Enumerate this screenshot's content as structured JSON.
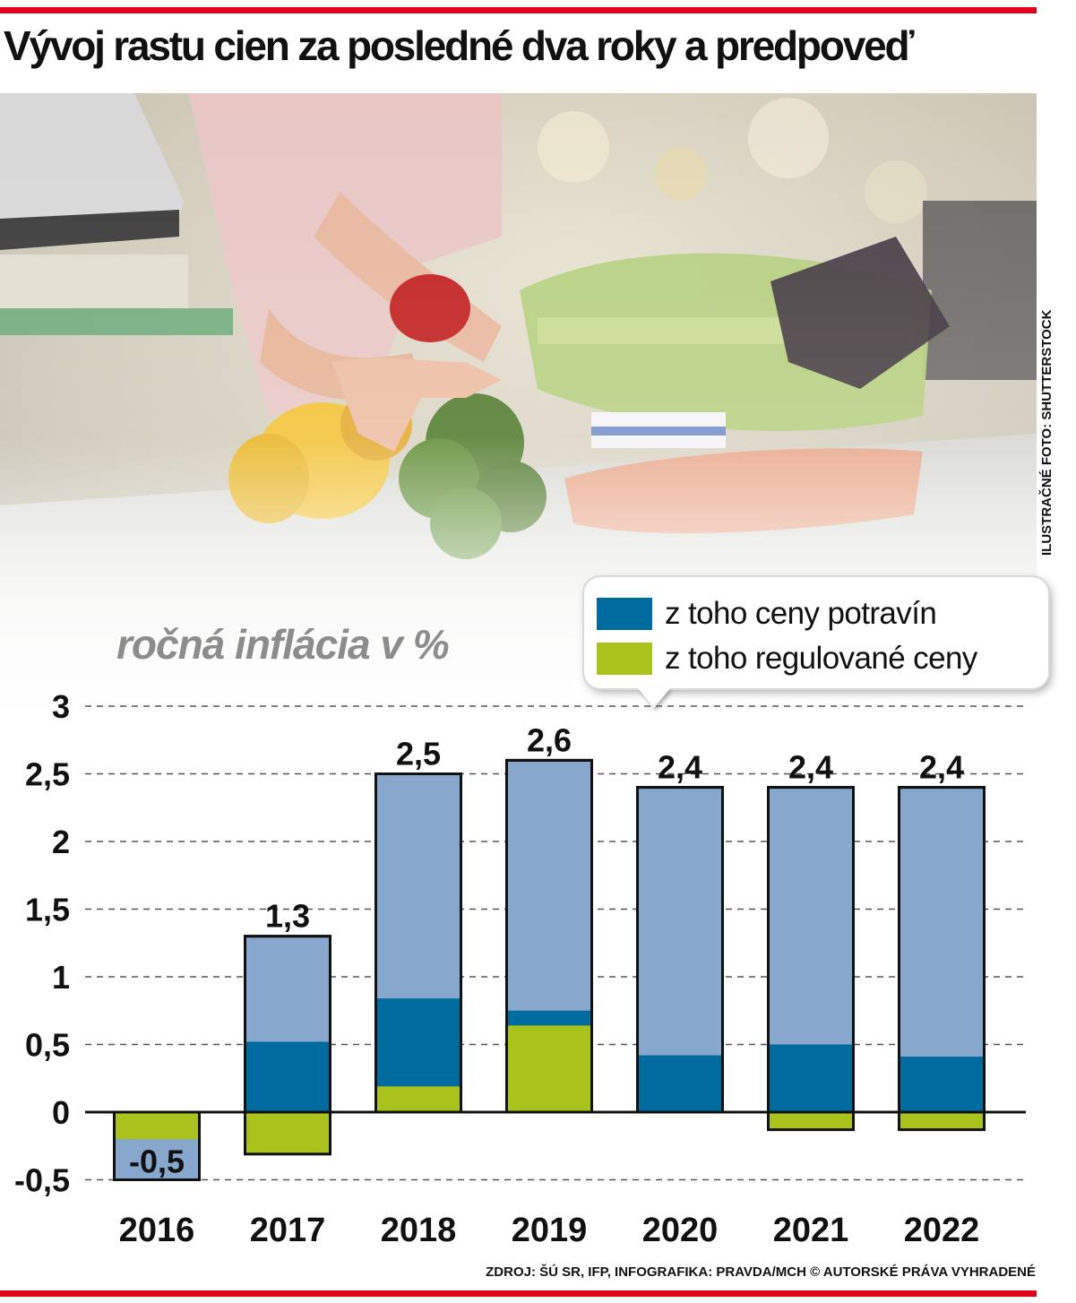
{
  "header": {
    "title": "Vývoj rastu cien za posledné dva roky a predpoveď",
    "photo_credit": "ILUSTRAČNÉ FOTO: SHUTTERSTOCK"
  },
  "footer": {
    "source": "ZDROJ: ŠÚ SR, IFP, INFOGRAFIKA: PRAVDA/MCH © AUTORSKÉ PRÁVA VYHRADENÉ"
  },
  "colors": {
    "total": "#87a7cd",
    "food": "#006b9f",
    "regulated": "#a9c31c",
    "rule": "#e3001b"
  },
  "chart_data": {
    "type": "bar",
    "title": "ročná inflácia v %",
    "categories": [
      "2016",
      "2017",
      "2018",
      "2019",
      "2020",
      "2021",
      "2022"
    ],
    "total_labels": [
      "-0,5",
      "1,3",
      "2,5",
      "2,6",
      "2,4",
      "2,4",
      "2,4"
    ],
    "series": [
      {
        "name": "ročná inflácia",
        "values": [
          -0.5,
          1.3,
          2.5,
          2.6,
          2.4,
          2.4,
          2.4
        ]
      },
      {
        "name": "z toho ceny potravín",
        "values": [
          -0.2,
          0.52,
          0.84,
          0.75,
          0.42,
          0.5,
          0.41
        ]
      },
      {
        "name": "z toho regulované ceny",
        "values": [
          -0.2,
          -0.31,
          0.19,
          0.64,
          0.0,
          -0.13,
          -0.13
        ]
      }
    ],
    "ylim": [
      -0.5,
      3
    ],
    "yticks": [
      3,
      2.5,
      2,
      1.5,
      1,
      0.5,
      0,
      -0.5
    ],
    "ytick_labels": [
      "3",
      "2,5",
      "2",
      "1,5",
      "1",
      "0,5",
      "0",
      "-0,5"
    ],
    "grid": true,
    "legend_position": "top-right"
  }
}
